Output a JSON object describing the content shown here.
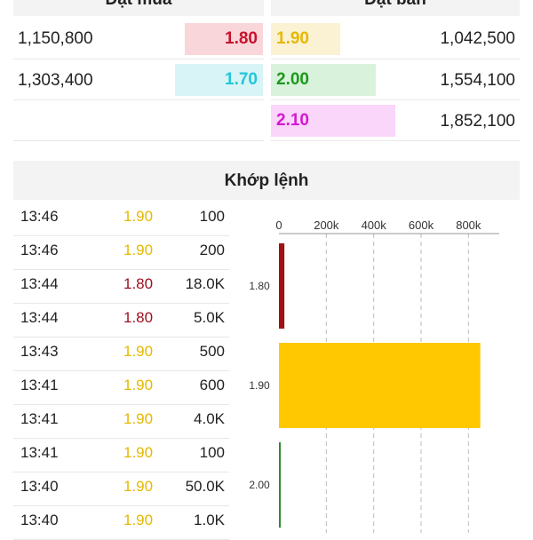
{
  "orderbook": {
    "bid_header": "Đặt mua",
    "ask_header": "Đặt bán",
    "bids": [
      {
        "volume": "1,150,800",
        "price": "1.80",
        "color": "#c8102e",
        "bg": "#f9d6d9"
      },
      {
        "volume": "1,303,400",
        "price": "1.70",
        "color": "#1ec8d8",
        "bg": "#d9f4f7"
      }
    ],
    "asks": [
      {
        "price": "1.90",
        "volume": "1,042,500",
        "color": "#e6b800",
        "bg": "#fbf1d3"
      },
      {
        "price": "2.00",
        "volume": "1,554,100",
        "color": "#1a9a1a",
        "bg": "#d9f2dc"
      },
      {
        "price": "2.10",
        "volume": "1,852,100",
        "color": "#d319d3",
        "bg": "#fad6fa"
      }
    ]
  },
  "match": {
    "title": "Khớp lệnh",
    "trades": [
      {
        "time": "13:46",
        "price": "1.90",
        "volume": "100",
        "color": "#e6b800"
      },
      {
        "time": "13:46",
        "price": "1.90",
        "volume": "200",
        "color": "#e6b800"
      },
      {
        "time": "13:44",
        "price": "1.80",
        "volume": "18.0K",
        "color": "#a01020"
      },
      {
        "time": "13:44",
        "price": "1.80",
        "volume": "5.0K",
        "color": "#a01020"
      },
      {
        "time": "13:43",
        "price": "1.90",
        "volume": "500",
        "color": "#e6b800"
      },
      {
        "time": "13:41",
        "price": "1.90",
        "volume": "600",
        "color": "#e6b800"
      },
      {
        "time": "13:41",
        "price": "1.90",
        "volume": "4.0K",
        "color": "#e6b800"
      },
      {
        "time": "13:41",
        "price": "1.90",
        "volume": "100",
        "color": "#e6b800"
      },
      {
        "time": "13:40",
        "price": "1.90",
        "volume": "50.0K",
        "color": "#e6b800"
      },
      {
        "time": "13:40",
        "price": "1.90",
        "volume": "1.0K",
        "color": "#e6b800"
      }
    ]
  },
  "chart_data": {
    "type": "bar",
    "orientation": "horizontal",
    "categories": [
      "1.80",
      "1.90",
      "2.00"
    ],
    "values": [
      23000,
      850000,
      2000
    ],
    "colors": [
      "#a01010",
      "#ffc800",
      "#2e8b2e"
    ],
    "x_ticks": [
      "0",
      "200k",
      "400k",
      "600k",
      "800k"
    ],
    "x_tick_values": [
      0,
      200000,
      400000,
      600000,
      800000
    ],
    "xlim": [
      0,
      930000
    ],
    "grid": "vertical-dashed"
  }
}
